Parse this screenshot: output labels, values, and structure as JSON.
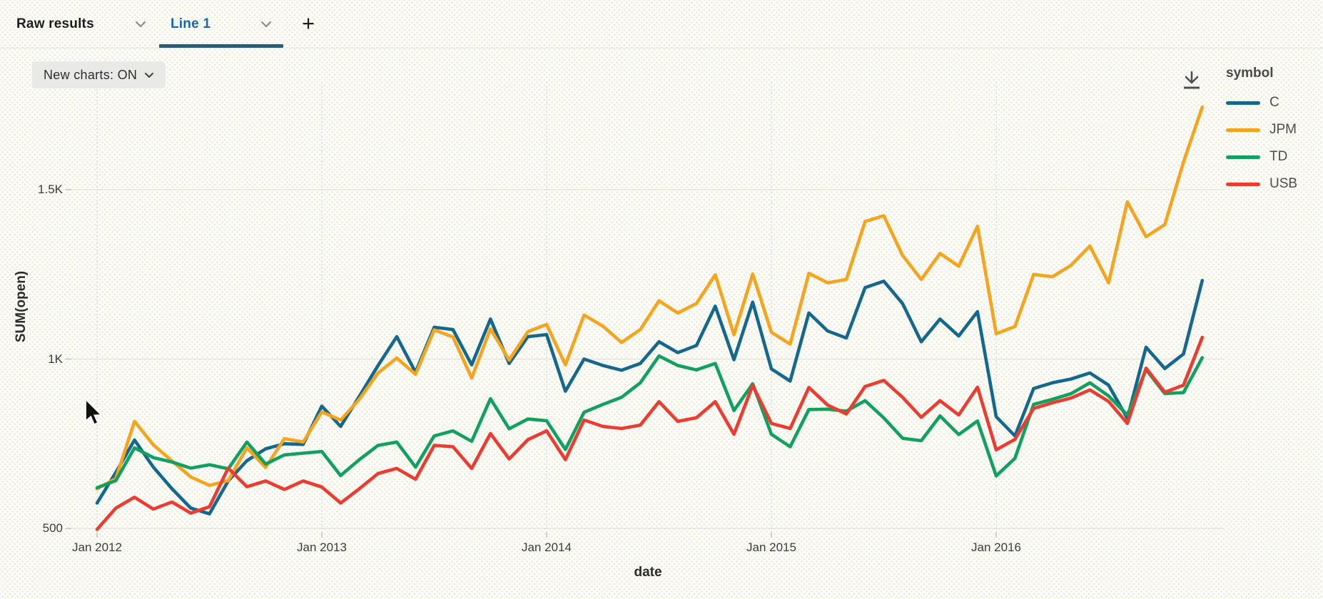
{
  "tab_bar": {
    "tabs": [
      {
        "label": "Raw results",
        "active": false
      },
      {
        "label": "Line 1",
        "active": true
      }
    ],
    "add_tab_label": "+"
  },
  "toolbar": {
    "new_charts_label": "New charts: ON"
  },
  "icons": {
    "tab_dropdown": "chevron-down",
    "download": "download-arrow",
    "cursor": "arrow-pointer"
  },
  "legend": {
    "title": "symbol",
    "items": [
      {
        "label": "C",
        "color": "#14688d"
      },
      {
        "label": "JPM",
        "color": "#f6a41d"
      },
      {
        "label": "TD",
        "color": "#10a05f"
      },
      {
        "label": "USB",
        "color": "#ee3b2f"
      }
    ]
  },
  "chart_data": {
    "type": "line",
    "title": "",
    "xlabel": "date",
    "ylabel": "SUM(open)",
    "x_range": [
      "Jan 2012",
      "Dec 2016"
    ],
    "points_per_series": 60,
    "x_ticks": [
      {
        "label": "Jan 2012",
        "index": 0
      },
      {
        "label": "Jan 2013",
        "index": 12
      },
      {
        "label": "Jan 2014",
        "index": 24
      },
      {
        "label": "Jan 2015",
        "index": 36
      },
      {
        "label": "Jan 2016",
        "index": 48
      }
    ],
    "y_ticks": [
      {
        "label": "500",
        "value": 500
      },
      {
        "label": "1K",
        "value": 1000
      },
      {
        "label": "1.5K",
        "value": 1500
      }
    ],
    "ylim": [
      450,
      1800
    ],
    "grid": true,
    "legend_position": "right",
    "series": [
      {
        "name": "C",
        "color": "#14688d",
        "values": [
          575,
          665,
          761,
          681,
          617,
          560,
          543,
          640,
          700,
          735,
          750,
          748,
          861,
          801,
          890,
          981,
          1066,
          961,
          1094,
          1087,
          983,
          1118,
          987,
          1066,
          1072,
          905,
          1000,
          981,
          967,
          987,
          1051,
          1019,
          1040,
          1156,
          998,
          1168,
          971,
          935,
          1136,
          1083,
          1062,
          1211,
          1230,
          1164,
          1051,
          1118,
          1068,
          1140,
          830,
          773,
          913,
          930,
          941,
          959,
          923,
          825,
          1035,
          972,
          1015,
          1232
        ]
      },
      {
        "name": "JPM",
        "color": "#f6a41d",
        "values": [
          617,
          647,
          816,
          747,
          699,
          652,
          627,
          641,
          738,
          680,
          765,
          755,
          844,
          820,
          881,
          959,
          1003,
          955,
          1086,
          1065,
          944,
          1089,
          997,
          1081,
          1102,
          983,
          1130,
          1097,
          1049,
          1087,
          1172,
          1136,
          1164,
          1249,
          1072,
          1251,
          1079,
          1044,
          1253,
          1225,
          1235,
          1406,
          1423,
          1306,
          1235,
          1312,
          1274,
          1392,
          1075,
          1096,
          1250,
          1243,
          1277,
          1334,
          1225,
          1464,
          1361,
          1397,
          1582,
          1744
        ]
      },
      {
        "name": "TD",
        "color": "#10a05f",
        "values": [
          620,
          641,
          738,
          709,
          696,
          678,
          688,
          676,
          755,
          690,
          717,
          722,
          727,
          656,
          703,
          745,
          755,
          681,
          773,
          788,
          757,
          883,
          794,
          823,
          818,
          733,
          843,
          866,
          887,
          930,
          1009,
          981,
          968,
          987,
          848,
          927,
          778,
          741,
          851,
          852,
          846,
          877,
          826,
          766,
          759,
          832,
          777,
          817,
          655,
          707,
          866,
          881,
          898,
          930,
          891,
          835,
          969,
          898,
          901,
          1004
        ]
      },
      {
        "name": "USB",
        "color": "#ee3b2f",
        "values": [
          497,
          560,
          592,
          557,
          578,
          545,
          564,
          678,
          623,
          640,
          615,
          640,
          622,
          575,
          617,
          662,
          677,
          645,
          745,
          741,
          677,
          780,
          705,
          762,
          788,
          703,
          820,
          801,
          795,
          805,
          874,
          816,
          827,
          874,
          778,
          922,
          810,
          795,
          916,
          864,
          838,
          919,
          937,
          887,
          828,
          877,
          835,
          917,
          732,
          763,
          854,
          871,
          885,
          909,
          875,
          810,
          973,
          902,
          923,
          1064
        ]
      }
    ]
  }
}
